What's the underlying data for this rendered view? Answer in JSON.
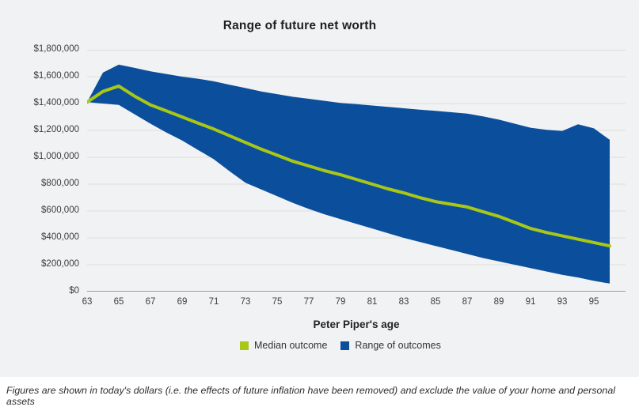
{
  "page": {
    "background": "#ffffff",
    "card_background": "#f1f2f4",
    "gridline_color": "#dddddd",
    "axis_line_color": "#9c9c9c"
  },
  "chart": {
    "title": "Range of future net worth",
    "x_axis": {
      "title": "Peter Piper's age",
      "ticks": [
        "63",
        "65",
        "67",
        "69",
        "71",
        "73",
        "75",
        "77",
        "79",
        "81",
        "83",
        "85",
        "87",
        "89",
        "91",
        "93",
        "95"
      ]
    },
    "y_axis": {
      "ticks": [
        {
          "value": 1800000,
          "label": "$1,800,000"
        },
        {
          "value": 1600000,
          "label": "$1,600,000"
        },
        {
          "value": 1400000,
          "label": "$1,400,000"
        },
        {
          "value": 1200000,
          "label": "$1,200,000"
        },
        {
          "value": 1000000,
          "label": "$1,000,000"
        },
        {
          "value": 800000,
          "label": "$800,000"
        },
        {
          "value": 600000,
          "label": "$600,000"
        },
        {
          "value": 400000,
          "label": "$400,000"
        },
        {
          "value": 200000,
          "label": "$200,000"
        },
        {
          "value": 0,
          "label": "$0"
        }
      ]
    },
    "legend": [
      {
        "label": "Median outcome",
        "color": "#a9c717"
      },
      {
        "label": "Range of outcomes",
        "color": "#0b4f9c"
      }
    ]
  },
  "footnote": "Figures are shown in today's dollars (i.e. the effects of future inflation have been removed) and exclude the value of your home and personal assets",
  "chart_data": {
    "type": "area",
    "title": "Range of future net worth",
    "xlabel": "Peter Piper's age",
    "ylabel": "",
    "x_range": [
      63,
      96
    ],
    "y_range": [
      0,
      1800000
    ],
    "grid": true,
    "legend_position": "bottom",
    "x": [
      63,
      64,
      65,
      66,
      67,
      68,
      69,
      70,
      71,
      72,
      73,
      74,
      75,
      76,
      77,
      78,
      79,
      80,
      81,
      82,
      83,
      84,
      85,
      86,
      87,
      88,
      89,
      90,
      91,
      92,
      93,
      94,
      95,
      96
    ],
    "series": [
      {
        "name": "Median outcome",
        "type": "line",
        "color": "#a9c717",
        "values": [
          1410000,
          1490000,
          1530000,
          1455000,
          1390000,
          1345000,
          1300000,
          1255000,
          1210000,
          1160000,
          1110000,
          1060000,
          1015000,
          970000,
          935000,
          900000,
          870000,
          835000,
          800000,
          765000,
          735000,
          700000,
          670000,
          650000,
          630000,
          595000,
          560000,
          515000,
          470000,
          440000,
          415000,
          390000,
          365000,
          340000
        ]
      },
      {
        "name": "Range of outcomes (upper bound)",
        "type": "area_upper",
        "color": "#0b4f9c",
        "values": [
          1410000,
          1630000,
          1690000,
          1665000,
          1640000,
          1620000,
          1600000,
          1585000,
          1565000,
          1540000,
          1515000,
          1490000,
          1470000,
          1450000,
          1435000,
          1420000,
          1405000,
          1395000,
          1385000,
          1375000,
          1365000,
          1355000,
          1345000,
          1335000,
          1325000,
          1305000,
          1280000,
          1250000,
          1220000,
          1205000,
          1195000,
          1245000,
          1215000,
          1130000
        ]
      },
      {
        "name": "Range of outcomes (lower bound)",
        "type": "area_lower",
        "color": "#0b4f9c",
        "values": [
          1410000,
          1400000,
          1390000,
          1320000,
          1250000,
          1185000,
          1125000,
          1055000,
          985000,
          895000,
          810000,
          760000,
          710000,
          660000,
          615000,
          575000,
          540000,
          505000,
          470000,
          435000,
          400000,
          370000,
          340000,
          310000,
          280000,
          250000,
          225000,
          200000,
          175000,
          150000,
          125000,
          105000,
          80000,
          60000
        ]
      }
    ]
  }
}
